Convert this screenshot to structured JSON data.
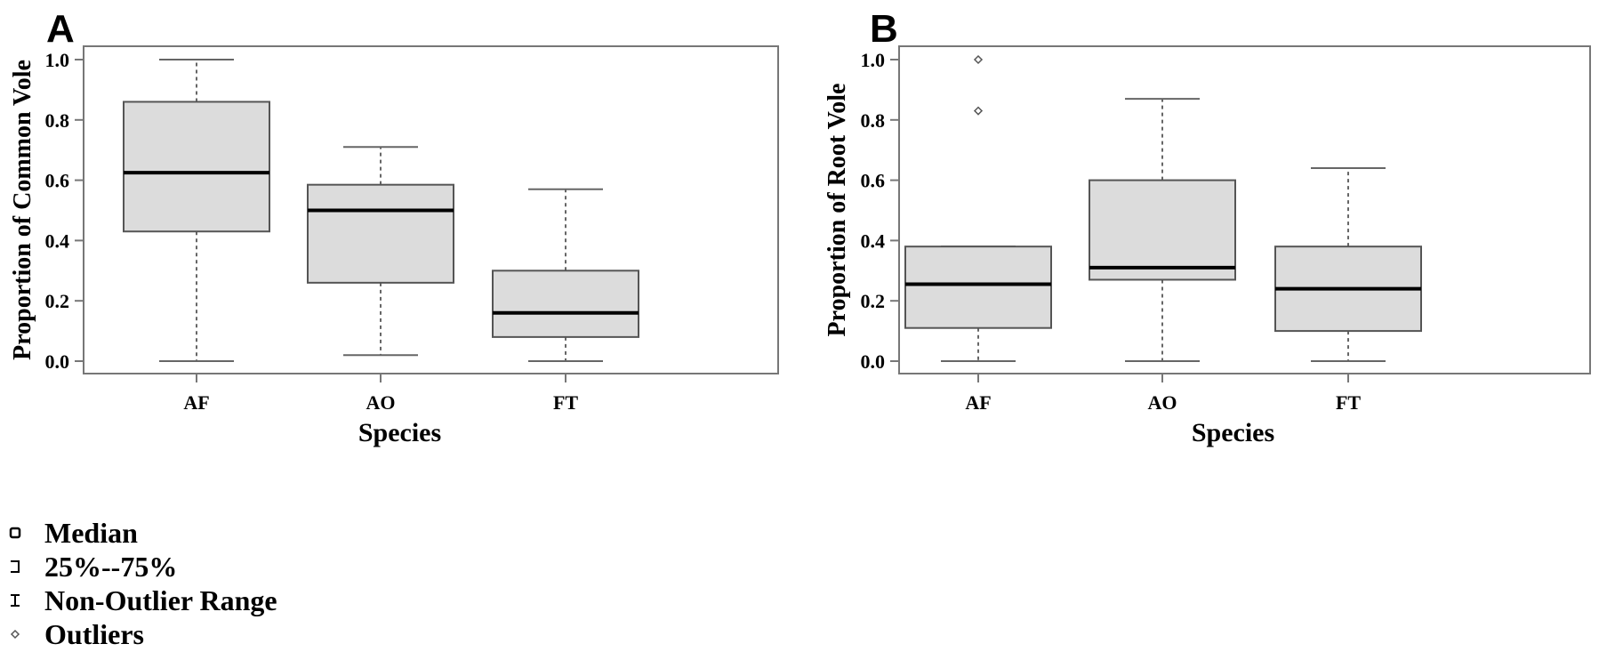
{
  "chart_data": [
    {
      "panel": "A",
      "type": "boxplot",
      "xlabel": "Species",
      "ylabel": "Proportion of Common Vole",
      "ylim": [
        0.0,
        1.0
      ],
      "yticks": [
        "0.0",
        "0.2",
        "0.4",
        "0.6",
        "0.8",
        "1.0"
      ],
      "categories": [
        "AF",
        "AO",
        "FT"
      ],
      "boxes": [
        {
          "category": "AF",
          "whisker_low": 0.0,
          "q1": 0.43,
          "median": 0.625,
          "q3": 0.86,
          "whisker_high": 1.0,
          "outliers": []
        },
        {
          "category": "AO",
          "whisker_low": 0.02,
          "q1": 0.26,
          "median": 0.5,
          "q3": 0.585,
          "whisker_high": 0.71,
          "outliers": []
        },
        {
          "category": "FT",
          "whisker_low": 0.0,
          "q1": 0.08,
          "median": 0.16,
          "q3": 0.3,
          "whisker_high": 0.57,
          "outliers": []
        }
      ]
    },
    {
      "panel": "B",
      "type": "boxplot",
      "xlabel": "Species",
      "ylabel": "Proportion of Root Vole",
      "ylim": [
        0.0,
        1.0
      ],
      "yticks": [
        "0.0",
        "0.2",
        "0.4",
        "0.6",
        "0.8",
        "1.0"
      ],
      "categories": [
        "AF",
        "AO",
        "FT"
      ],
      "boxes": [
        {
          "category": "AF",
          "whisker_low": 0.0,
          "q1": 0.11,
          "median": 0.255,
          "q3": 0.38,
          "whisker_high": 0.38,
          "outliers": [
            0.83,
            1.0
          ]
        },
        {
          "category": "AO",
          "whisker_low": 0.0,
          "q1": 0.27,
          "median": 0.31,
          "q3": 0.6,
          "whisker_high": 0.87,
          "outliers": []
        },
        {
          "category": "FT",
          "whisker_low": 0.0,
          "q1": 0.1,
          "median": 0.24,
          "q3": 0.38,
          "whisker_high": 0.64,
          "outliers": []
        }
      ]
    }
  ],
  "legend": {
    "items": [
      {
        "label": "Median",
        "icon": "small-square-icon"
      },
      {
        "label": "25%--75%",
        "icon": "box-bracket-icon"
      },
      {
        "label": "Non-Outlier Range",
        "icon": "whisker-icon"
      },
      {
        "label": "Outliers",
        "icon": "diamond-icon"
      }
    ]
  },
  "colors": {
    "box_fill": "#dcdcdc",
    "box_stroke": "#555555",
    "median": "#000000",
    "whisker": "#666666",
    "frame": "#777777"
  }
}
